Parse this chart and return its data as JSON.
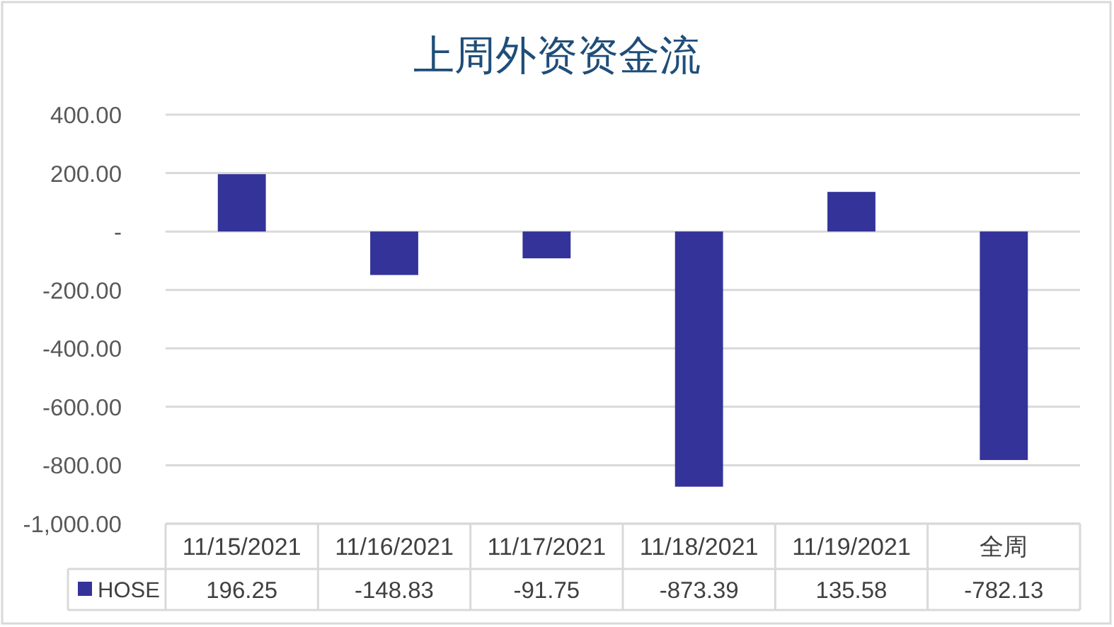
{
  "chart_data": {
    "type": "bar",
    "title": "上周外资资金流",
    "categories": [
      "11/15/2021",
      "11/16/2021",
      "11/17/2021",
      "11/18/2021",
      "11/19/2021",
      "全周"
    ],
    "series": [
      {
        "name": "HOSE",
        "color": "#333399",
        "values": [
          196.25,
          -148.83,
          -91.75,
          -873.39,
          135.58,
          -782.13
        ]
      }
    ],
    "ylim": [
      -1000,
      400
    ],
    "yticks": [
      {
        "value": -1000,
        "label": "-1,000.00"
      },
      {
        "value": -800,
        "label": "-800.00"
      },
      {
        "value": -600,
        "label": "-600.00"
      },
      {
        "value": -400,
        "label": "-400.00"
      },
      {
        "value": -200,
        "label": "-200.00"
      },
      {
        "value": 0,
        "label": "-"
      },
      {
        "value": 200,
        "label": "200.00"
      },
      {
        "value": 400,
        "label": "400.00"
      }
    ],
    "grid": "y",
    "legend": "bottom",
    "data_labels": true
  }
}
